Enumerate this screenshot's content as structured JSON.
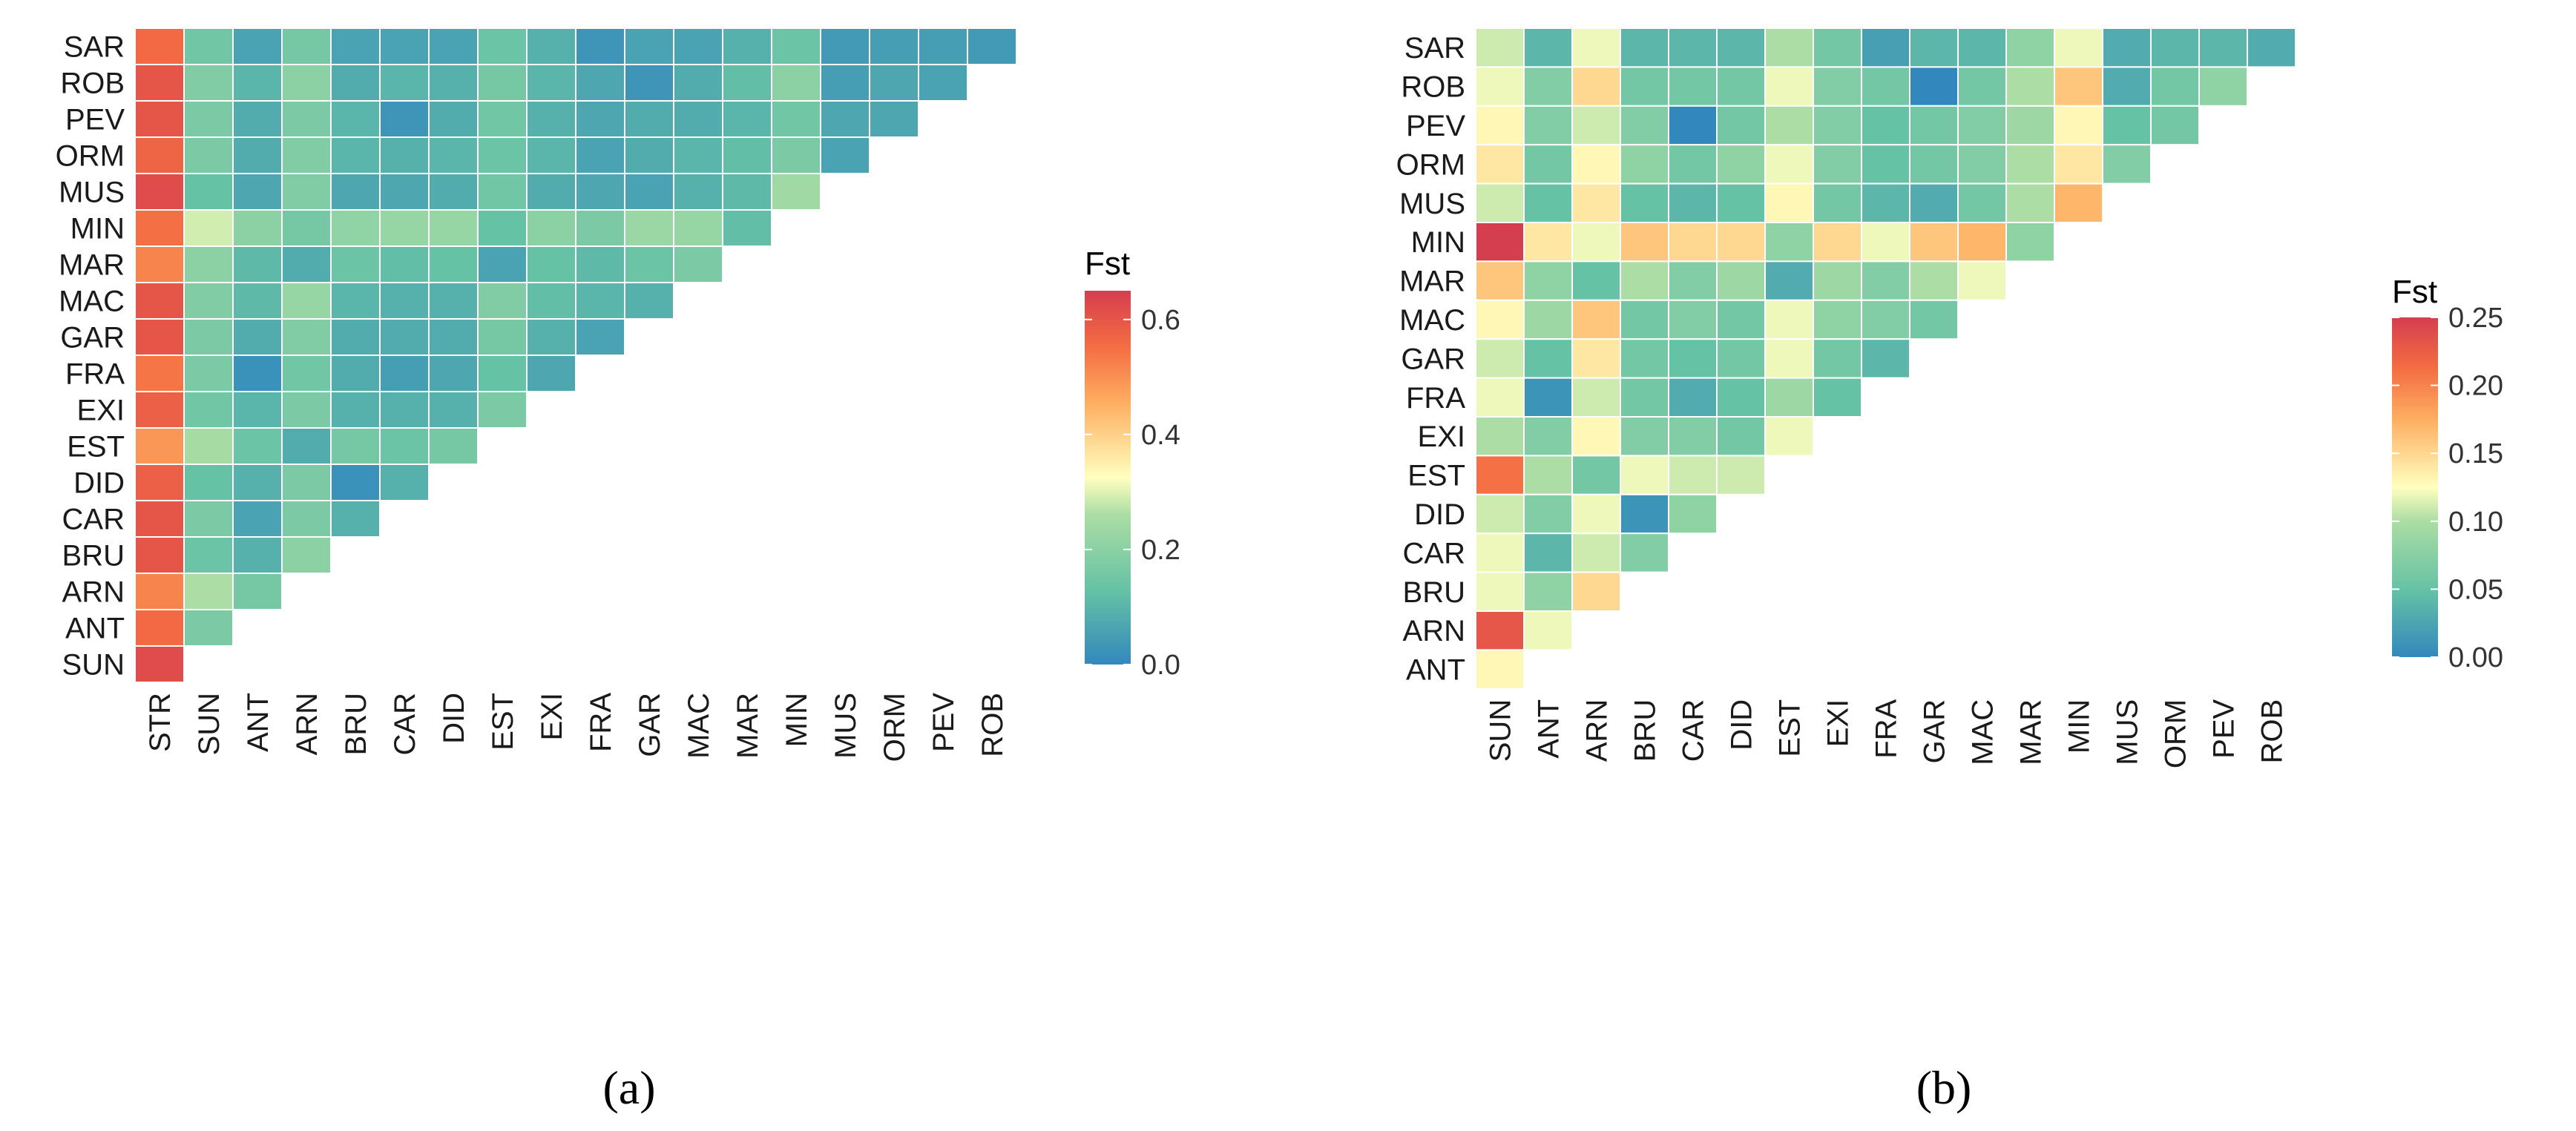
{
  "chart_data": [
    {
      "type": "heatmap",
      "panel_label": "(a)",
      "legend_title": "Fst",
      "legend_ticks": [
        "0.0",
        "0.2",
        "0.4",
        "0.6"
      ],
      "legend_tick_values": [
        0.0,
        0.2,
        0.4,
        0.6
      ],
      "color_range": [
        0.0,
        0.65
      ],
      "row_labels": [
        "SAR",
        "ROB",
        "PEV",
        "ORM",
        "MUS",
        "MIN",
        "MAR",
        "MAC",
        "GAR",
        "FRA",
        "EXI",
        "EST",
        "DID",
        "CAR",
        "BRU",
        "ARN",
        "ANT",
        "SUN"
      ],
      "col_labels": [
        "STR",
        "SUN",
        "ANT",
        "ARN",
        "BRU",
        "CAR",
        "DID",
        "EST",
        "EXI",
        "FRA",
        "GAR",
        "MAC",
        "MAR",
        "MIN",
        "MUS",
        "ORM",
        "PEV",
        "ROB"
      ],
      "values": [
        [
          0.56,
          0.15,
          0.06,
          0.16,
          0.06,
          0.06,
          0.06,
          0.14,
          0.09,
          0.03,
          0.06,
          0.06,
          0.09,
          0.14,
          0.04,
          0.05,
          0.05,
          0.04
        ],
        [
          0.6,
          0.18,
          0.1,
          0.2,
          0.08,
          0.1,
          0.09,
          0.16,
          0.1,
          0.07,
          0.03,
          0.08,
          0.12,
          0.2,
          0.05,
          0.07,
          0.06
        ],
        [
          0.6,
          0.17,
          0.08,
          0.17,
          0.1,
          0.03,
          0.08,
          0.15,
          0.09,
          0.07,
          0.08,
          0.08,
          0.1,
          0.15,
          0.07,
          0.07
        ],
        [
          0.57,
          0.17,
          0.08,
          0.18,
          0.1,
          0.09,
          0.1,
          0.14,
          0.1,
          0.06,
          0.08,
          0.1,
          0.12,
          0.17,
          0.06
        ],
        [
          0.62,
          0.13,
          0.07,
          0.18,
          0.07,
          0.07,
          0.08,
          0.15,
          0.08,
          0.07,
          0.06,
          0.09,
          0.11,
          0.24
        ],
        [
          0.55,
          0.29,
          0.2,
          0.16,
          0.21,
          0.22,
          0.22,
          0.13,
          0.2,
          0.17,
          0.23,
          0.22,
          0.12
        ],
        [
          0.52,
          0.2,
          0.11,
          0.08,
          0.14,
          0.12,
          0.13,
          0.06,
          0.13,
          0.11,
          0.14,
          0.17
        ],
        [
          0.6,
          0.18,
          0.11,
          0.22,
          0.1,
          0.09,
          0.09,
          0.18,
          0.12,
          0.1,
          0.09
        ],
        [
          0.6,
          0.17,
          0.08,
          0.18,
          0.08,
          0.08,
          0.08,
          0.16,
          0.09,
          0.06
        ],
        [
          0.54,
          0.17,
          0.02,
          0.15,
          0.08,
          0.05,
          0.07,
          0.13,
          0.07
        ],
        [
          0.58,
          0.15,
          0.1,
          0.17,
          0.09,
          0.09,
          0.09,
          0.17
        ],
        [
          0.49,
          0.25,
          0.14,
          0.08,
          0.16,
          0.14,
          0.16
        ],
        [
          0.58,
          0.13,
          0.09,
          0.17,
          0.02,
          0.09
        ],
        [
          0.6,
          0.17,
          0.06,
          0.17,
          0.09
        ],
        [
          0.6,
          0.14,
          0.09,
          0.2
        ],
        [
          0.52,
          0.26,
          0.16
        ],
        [
          0.56,
          0.17
        ],
        [
          0.62
        ]
      ]
    },
    {
      "type": "heatmap",
      "panel_label": "(b)",
      "legend_title": "Fst",
      "legend_ticks": [
        "0.00",
        "0.05",
        "0.10",
        "0.15",
        "0.20",
        "0.25"
      ],
      "legend_tick_values": [
        0.0,
        0.05,
        0.1,
        0.15,
        0.2,
        0.25
      ],
      "color_range": [
        0.0,
        0.25
      ],
      "row_labels": [
        "SAR",
        "ROB",
        "PEV",
        "ORM",
        "MUS",
        "MIN",
        "MAR",
        "MAC",
        "GAR",
        "FRA",
        "EXI",
        "EST",
        "DID",
        "CAR",
        "BRU",
        "ARN",
        "ANT"
      ],
      "col_labels": [
        "SUN",
        "ANT",
        "ARN",
        "BRU",
        "CAR",
        "DID",
        "EST",
        "EXI",
        "FRA",
        "GAR",
        "MAC",
        "MAR",
        "MIN",
        "MUS",
        "ORM",
        "PEV",
        "ROB"
      ],
      "values": [
        [
          0.11,
          0.04,
          0.12,
          0.04,
          0.04,
          0.04,
          0.1,
          0.06,
          0.02,
          0.04,
          0.04,
          0.08,
          0.12,
          0.03,
          0.04,
          0.04,
          0.03
        ],
        [
          0.12,
          0.07,
          0.15,
          0.06,
          0.06,
          0.06,
          0.12,
          0.07,
          0.06,
          0.0,
          0.06,
          0.1,
          0.16,
          0.03,
          0.06,
          0.08
        ],
        [
          0.13,
          0.07,
          0.11,
          0.07,
          0.0,
          0.06,
          0.1,
          0.07,
          0.05,
          0.06,
          0.07,
          0.09,
          0.13,
          0.05,
          0.06
        ],
        [
          0.14,
          0.06,
          0.13,
          0.08,
          0.06,
          0.08,
          0.12,
          0.07,
          0.05,
          0.06,
          0.07,
          0.1,
          0.14,
          0.07
        ],
        [
          0.11,
          0.05,
          0.14,
          0.05,
          0.04,
          0.05,
          0.13,
          0.06,
          0.04,
          0.03,
          0.06,
          0.1,
          0.17
        ],
        [
          0.25,
          0.14,
          0.12,
          0.16,
          0.15,
          0.15,
          0.08,
          0.15,
          0.12,
          0.16,
          0.17,
          0.08
        ],
        [
          0.16,
          0.08,
          0.05,
          0.1,
          0.07,
          0.09,
          0.03,
          0.09,
          0.07,
          0.1,
          0.12
        ],
        [
          0.13,
          0.09,
          0.16,
          0.06,
          0.07,
          0.06,
          0.12,
          0.08,
          0.07,
          0.06
        ],
        [
          0.11,
          0.05,
          0.14,
          0.06,
          0.05,
          0.06,
          0.12,
          0.06,
          0.04
        ],
        [
          0.12,
          0.01,
          0.11,
          0.06,
          0.03,
          0.05,
          0.09,
          0.05
        ],
        [
          0.1,
          0.07,
          0.13,
          0.07,
          0.07,
          0.06,
          0.12
        ],
        [
          0.21,
          0.1,
          0.06,
          0.12,
          0.11,
          0.11
        ],
        [
          0.11,
          0.07,
          0.12,
          0.01,
          0.08
        ],
        [
          0.12,
          0.04,
          0.11,
          0.07
        ],
        [
          0.12,
          0.08,
          0.15
        ],
        [
          0.23,
          0.12
        ],
        [
          0.13
        ]
      ]
    }
  ]
}
